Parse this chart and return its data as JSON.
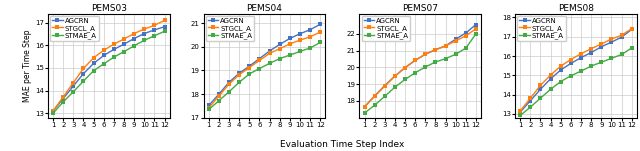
{
  "panels": [
    {
      "title": "PEMS03",
      "ylim": [
        12.8,
        17.4
      ],
      "yticks": [
        13,
        14,
        15,
        16,
        17
      ],
      "series": {
        "AGCRN": [
          13.1,
          13.65,
          14.2,
          14.75,
          15.2,
          15.55,
          15.82,
          16.05,
          16.3,
          16.52,
          16.68,
          16.82
        ],
        "STGCL_A": [
          13.1,
          13.72,
          14.35,
          14.98,
          15.45,
          15.78,
          16.05,
          16.28,
          16.52,
          16.72,
          16.88,
          17.1
        ],
        "STMAE_A": [
          13.0,
          13.5,
          13.95,
          14.42,
          14.88,
          15.18,
          15.48,
          15.72,
          15.98,
          16.22,
          16.42,
          16.62
        ]
      }
    },
    {
      "title": "PEMS04",
      "ylim": [
        17.0,
        21.4
      ],
      "yticks": [
        17,
        18,
        19,
        20,
        21
      ],
      "series": {
        "AGCRN": [
          17.52,
          18.0,
          18.5,
          18.88,
          19.18,
          19.5,
          19.82,
          20.1,
          20.35,
          20.55,
          20.72,
          20.95
        ],
        "STGCL_A": [
          17.42,
          17.92,
          18.42,
          18.82,
          19.12,
          19.42,
          19.72,
          19.92,
          20.12,
          20.28,
          20.42,
          20.62
        ],
        "STMAE_A": [
          17.35,
          17.72,
          18.1,
          18.5,
          18.85,
          19.08,
          19.3,
          19.5,
          19.65,
          19.8,
          19.95,
          20.18
        ]
      }
    },
    {
      "title": "PEMS07",
      "ylim": [
        17.0,
        23.2
      ],
      "yticks": [
        18,
        19,
        20,
        21,
        22
      ],
      "series": {
        "AGCRN": [
          17.65,
          18.3,
          18.92,
          19.48,
          19.98,
          20.42,
          20.78,
          21.05,
          21.28,
          21.68,
          22.05,
          22.55
        ],
        "STGCL_A": [
          17.65,
          18.28,
          18.88,
          19.48,
          19.98,
          20.42,
          20.78,
          21.05,
          21.28,
          21.58,
          21.88,
          22.3
        ],
        "STMAE_A": [
          17.28,
          17.75,
          18.28,
          18.82,
          19.28,
          19.68,
          20.02,
          20.32,
          20.52,
          20.78,
          21.15,
          22.0
        ]
      }
    },
    {
      "title": "PEMS08",
      "ylim": [
        12.8,
        18.2
      ],
      "yticks": [
        13,
        14,
        15,
        16,
        17,
        18
      ],
      "series": {
        "AGCRN": [
          13.1,
          13.68,
          14.28,
          14.82,
          15.28,
          15.62,
          15.92,
          16.18,
          16.48,
          16.72,
          16.98,
          17.38
        ],
        "STGCL_A": [
          13.15,
          13.82,
          14.48,
          15.02,
          15.48,
          15.82,
          16.12,
          16.38,
          16.62,
          16.88,
          17.08,
          17.42
        ],
        "STMAE_A": [
          12.92,
          13.35,
          13.82,
          14.28,
          14.68,
          14.98,
          15.22,
          15.48,
          15.68,
          15.88,
          16.08,
          16.42
        ]
      }
    }
  ],
  "colors": {
    "AGCRN": "#4472c4",
    "STGCL_A": "#ff7f0e",
    "STMAE_A": "#44aa44"
  },
  "marker": "s",
  "markersize": 2.2,
  "linewidth": 1.0,
  "xlabel": "Evaluation Time Step Index",
  "ylabel": "MAE per Time Step",
  "x": [
    1,
    2,
    3,
    4,
    5,
    6,
    7,
    8,
    9,
    10,
    11,
    12
  ]
}
